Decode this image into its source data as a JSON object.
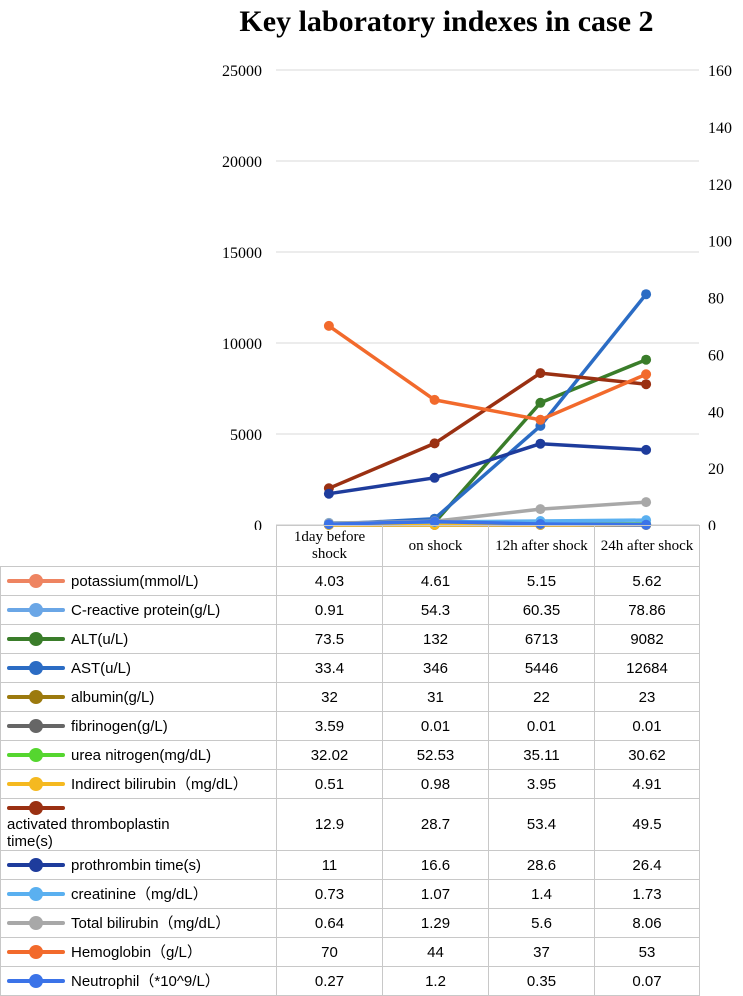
{
  "chart_data": {
    "type": "line",
    "title": "Key laboratory indexes in case 2",
    "categories": [
      "1day before shock",
      "on shock",
      "12h after shock",
      "24h after shock"
    ],
    "y_left": {
      "min": 0,
      "max": 25000,
      "ticks": [
        "0",
        "5000",
        "10000",
        "15000",
        "20000",
        "25000"
      ]
    },
    "y_right": {
      "min": 0,
      "max": 160,
      "ticks": [
        "0",
        "20",
        "40",
        "60",
        "80",
        "100",
        "120",
        "140",
        "160"
      ]
    },
    "grid": true,
    "legend": "table below chart",
    "series": [
      {
        "name": "potassium(mmol/L)",
        "values": [
          "4.03",
          "4.61",
          "5.15",
          "5.62"
        ],
        "color": "#ee8461",
        "axis": "left"
      },
      {
        "name": "C-reactive protein(g/L)",
        "values": [
          "0.91",
          "54.3",
          "60.35",
          "78.86"
        ],
        "color": "#6aa6e6",
        "axis": "left"
      },
      {
        "name": "ALT(u/L)",
        "values": [
          "73.5",
          "132",
          "6713",
          "9082"
        ],
        "color": "#3a7d2a",
        "axis": "left"
      },
      {
        "name": "AST(u/L)",
        "values": [
          "33.4",
          "346",
          "5446",
          "12684"
        ],
        "color": "#2b6cc4",
        "axis": "left"
      },
      {
        "name": "albumin(g/L)",
        "values": [
          "32",
          "31",
          "22",
          "23"
        ],
        "color": "#9c7a0e",
        "axis": "left"
      },
      {
        "name": "fibrinogen(g/L)",
        "values": [
          "3.59",
          "0.01",
          "0.01",
          "0.01"
        ],
        "color": "#666666",
        "axis": "left"
      },
      {
        "name": "urea nitrogen(mg/dL)",
        "values": [
          "32.02",
          "52.53",
          "35.11",
          "30.62"
        ],
        "color": "#55d62f",
        "axis": "left"
      },
      {
        "name": "Indirect bilirubin（mg/dL）",
        "values": [
          "0.51",
          "0.98",
          "3.95",
          "4.91"
        ],
        "color": "#f5b920",
        "axis": "left"
      },
      {
        "name": "activated thromboplastin time(s)",
        "values": [
          "12.9",
          "28.7",
          "53.4",
          "49.5"
        ],
        "color": "#9a3012",
        "axis": "right"
      },
      {
        "name": "prothrombin time(s)",
        "values": [
          "11",
          "16.6",
          "28.6",
          "26.4"
        ],
        "color": "#1e3c9c",
        "axis": "right"
      },
      {
        "name": "creatinine（mg/dL）",
        "values": [
          "0.73",
          "1.07",
          "1.4",
          "1.73"
        ],
        "color": "#5ab0f0",
        "axis": "right"
      },
      {
        "name": "Total bilirubin（mg/dL）",
        "values": [
          "0.64",
          "1.29",
          "5.6",
          "8.06"
        ],
        "color": "#a8a8a8",
        "axis": "right"
      },
      {
        "name": "Hemoglobin（g/L）",
        "values": [
          "70",
          "44",
          "37",
          "53"
        ],
        "color": "#f26a2c",
        "axis": "right"
      },
      {
        "name": "Neutrophil（*10^9/L）",
        "values": [
          "0.27",
          "1.2",
          "0.35",
          "0.07"
        ],
        "color": "#3b73e8",
        "axis": "right"
      }
    ]
  }
}
